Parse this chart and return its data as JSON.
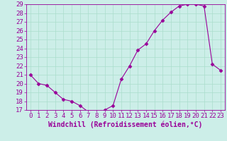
{
  "x": [
    0,
    1,
    2,
    3,
    4,
    5,
    6,
    7,
    8,
    9,
    10,
    11,
    12,
    13,
    14,
    15,
    16,
    17,
    18,
    19,
    20,
    21,
    22,
    23
  ],
  "y": [
    21,
    20,
    19.8,
    19,
    18.2,
    18,
    17.5,
    16.8,
    16.7,
    17,
    17.5,
    20.5,
    22,
    23.8,
    24.5,
    26,
    27.2,
    28.1,
    28.8,
    29,
    29,
    28.8,
    22.2,
    21.5
  ],
  "line_color": "#990099",
  "marker": "D",
  "marker_size": 2.5,
  "bg_color": "#cceee8",
  "grid_color": "#aaddcc",
  "xlabel": "Windchill (Refroidissement éolien,°C)",
  "xlabel_fontsize": 7,
  "tick_fontsize": 6.5,
  "ylim": [
    17,
    29
  ],
  "xlim": [
    -0.5,
    23.5
  ],
  "yticks": [
    17,
    18,
    19,
    20,
    21,
    22,
    23,
    24,
    25,
    26,
    27,
    28,
    29
  ],
  "xticks": [
    0,
    1,
    2,
    3,
    4,
    5,
    6,
    7,
    8,
    9,
    10,
    11,
    12,
    13,
    14,
    15,
    16,
    17,
    18,
    19,
    20,
    21,
    22,
    23
  ],
  "xtick_labels": [
    "0",
    "1",
    "2",
    "3",
    "4",
    "5",
    "6",
    "7",
    "8",
    "9",
    "10",
    "11",
    "12",
    "13",
    "14",
    "15",
    "16",
    "17",
    "18",
    "19",
    "20",
    "21",
    "22",
    "23"
  ]
}
